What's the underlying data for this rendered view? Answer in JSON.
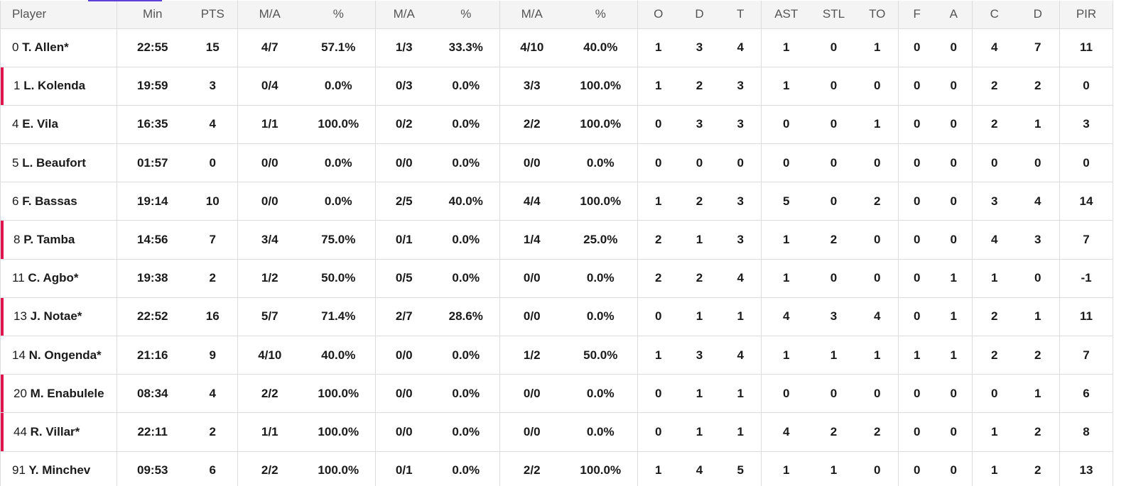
{
  "table": {
    "headers": [
      "Player",
      "Min",
      "PTS",
      "M/A",
      "%",
      "M/A",
      "%",
      "M/A",
      "%",
      "O",
      "D",
      "T",
      "AST",
      "STL",
      "TO",
      "F",
      "A",
      "C",
      "D",
      "PIR"
    ],
    "rows": [
      [
        {
          "number": "0",
          "name": "T. Allen*"
        },
        "22:55",
        "15",
        "4/7",
        "57.1%",
        "1/3",
        "33.3%",
        "4/10",
        "40.0%",
        "1",
        "3",
        "4",
        "1",
        "0",
        "1",
        "0",
        "0",
        "4",
        "7",
        "11"
      ],
      [
        {
          "number": "1",
          "name": "L. Kolenda"
        },
        "19:59",
        "3",
        "0/4",
        "0.0%",
        "0/3",
        "0.0%",
        "3/3",
        "100.0%",
        "1",
        "2",
        "3",
        "1",
        "0",
        "0",
        "0",
        "0",
        "2",
        "2",
        "0"
      ],
      [
        {
          "number": "4",
          "name": "E. Vila"
        },
        "16:35",
        "4",
        "1/1",
        "100.0%",
        "0/2",
        "0.0%",
        "2/2",
        "100.0%",
        "0",
        "3",
        "3",
        "0",
        "0",
        "1",
        "0",
        "0",
        "2",
        "1",
        "3"
      ],
      [
        {
          "number": "5",
          "name": "L. Beaufort"
        },
        "01:57",
        "0",
        "0/0",
        "0.0%",
        "0/0",
        "0.0%",
        "0/0",
        "0.0%",
        "0",
        "0",
        "0",
        "0",
        "0",
        "0",
        "0",
        "0",
        "0",
        "0",
        "0"
      ],
      [
        {
          "number": "6",
          "name": "F. Bassas"
        },
        "19:14",
        "10",
        "0/0",
        "0.0%",
        "2/5",
        "40.0%",
        "4/4",
        "100.0%",
        "1",
        "2",
        "3",
        "5",
        "0",
        "2",
        "0",
        "0",
        "3",
        "4",
        "14"
      ],
      [
        {
          "number": "8",
          "name": "P. Tamba"
        },
        "14:56",
        "7",
        "3/4",
        "75.0%",
        "0/1",
        "0.0%",
        "1/4",
        "25.0%",
        "2",
        "1",
        "3",
        "1",
        "2",
        "0",
        "0",
        "0",
        "4",
        "3",
        "7"
      ],
      [
        {
          "number": "11",
          "name": "C. Agbo*"
        },
        "19:38",
        "2",
        "1/2",
        "50.0%",
        "0/5",
        "0.0%",
        "0/0",
        "0.0%",
        "2",
        "2",
        "4",
        "1",
        "0",
        "0",
        "0",
        "1",
        "1",
        "0",
        "-1"
      ],
      [
        {
          "number": "13",
          "name": "J. Notae*"
        },
        "22:52",
        "16",
        "5/7",
        "71.4%",
        "2/7",
        "28.6%",
        "0/0",
        "0.0%",
        "0",
        "1",
        "1",
        "4",
        "3",
        "4",
        "0",
        "1",
        "2",
        "1",
        "11"
      ],
      [
        {
          "number": "14",
          "name": "N. Ongenda*"
        },
        "21:16",
        "9",
        "4/10",
        "40.0%",
        "0/0",
        "0.0%",
        "1/2",
        "50.0%",
        "1",
        "3",
        "4",
        "1",
        "1",
        "1",
        "1",
        "1",
        "2",
        "2",
        "7"
      ],
      [
        {
          "number": "20",
          "name": "M. Enabulele"
        },
        "08:34",
        "4",
        "2/2",
        "100.0%",
        "0/0",
        "0.0%",
        "0/0",
        "0.0%",
        "0",
        "1",
        "1",
        "0",
        "0",
        "0",
        "0",
        "0",
        "0",
        "1",
        "6"
      ],
      [
        {
          "number": "44",
          "name": "R. Villar*"
        },
        "22:11",
        "2",
        "1/1",
        "100.0%",
        "0/0",
        "0.0%",
        "0/0",
        "0.0%",
        "0",
        "1",
        "1",
        "4",
        "2",
        "2",
        "0",
        "0",
        "1",
        "2",
        "8"
      ],
      [
        {
          "number": "91",
          "name": "Y. Minchev"
        },
        "09:53",
        "6",
        "2/2",
        "100.0%",
        "0/1",
        "0.0%",
        "2/2",
        "100.0%",
        "1",
        "4",
        "5",
        "1",
        "1",
        "0",
        "0",
        "0",
        "1",
        "2",
        "13"
      ]
    ]
  }
}
